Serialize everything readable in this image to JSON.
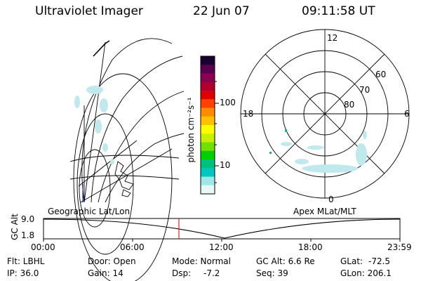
{
  "header": {
    "instrument": "Ultraviolet Imager",
    "date": "22 Jun 07",
    "time": "09:11:58 UT"
  },
  "colorbar": {
    "unit_label": "photon cm⁻²s⁻¹",
    "ticks": [
      "100",
      "10"
    ],
    "colors": [
      "#1a0030",
      "#5a0050",
      "#8a0050",
      "#b00030",
      "#e00000",
      "#ff4000",
      "#ff8c00",
      "#ffc000",
      "#ffff00",
      "#c8f000",
      "#70e000",
      "#00d000",
      "#00c080",
      "#00c8c0",
      "#a0e8e8",
      "#e8f8f8"
    ]
  },
  "polar_plot": {
    "hour_labels": {
      "top": "12",
      "left": "18",
      "right": "6",
      "bottom": "0"
    },
    "lat_labels": [
      "60",
      "70",
      "80"
    ]
  },
  "map_labels": {
    "left": "Geographic Lat/Lon",
    "right": "Apex MLat/MLT"
  },
  "timeline": {
    "axis_label": "GC Alt",
    "y_ticks": [
      "9.0",
      "1.8"
    ],
    "x_ticks": [
      "00:00",
      "06:00",
      "12:00",
      "18:00",
      "23:59"
    ],
    "current_marker_time": "09:11"
  },
  "info": {
    "flt": "Flt: LBHL",
    "ip": "IP: 36.0",
    "door": "Door: Open",
    "gain": "Gain: 14",
    "mode_label": "Mode: Normal",
    "dsp_label": "Dsp:",
    "dsp_value": "-7.2",
    "gc_alt": "GC Alt: 6.6 Re",
    "seq": "Seq: 39",
    "glat_label": "GLat:",
    "glat_value": "-72.5",
    "glon": "GLon: 206.1"
  }
}
